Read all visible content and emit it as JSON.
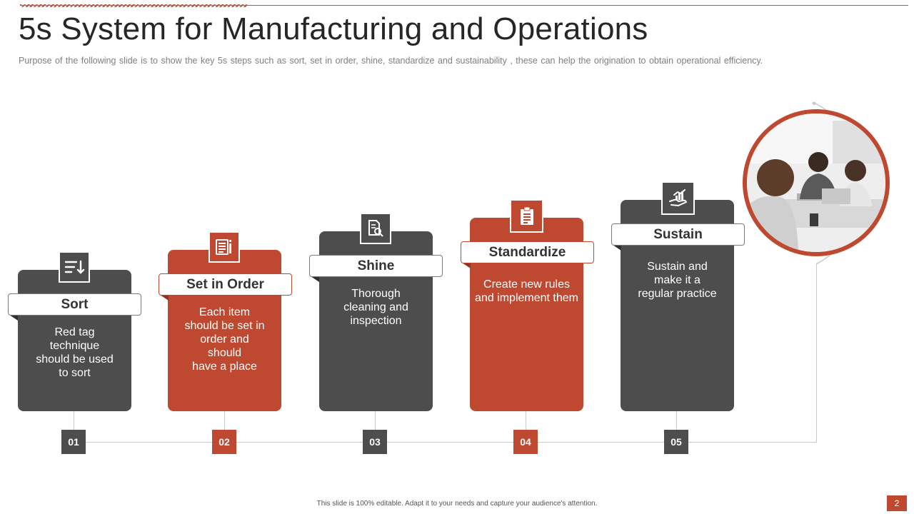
{
  "slide": {
    "title": "5s System for Manufacturing and Operations",
    "subtitle": "Purpose of the following slide is to show the key 5s steps such as sort, set in order, shine, standardize and sustainability , these can help the origination to obtain operational efficiency.",
    "footer": "This slide is 100% editable. Adapt it to your needs and capture your audience's attention.",
    "page_number": "2"
  },
  "colors": {
    "dark": "#4d4d4d",
    "red": "#bf4930",
    "line": "#c9c9c9"
  },
  "steps": [
    {
      "label": "Sort",
      "text": "Red tag\ntechnique\nshould be used\nto sort",
      "number": "01",
      "icon": "sort-icon",
      "color": "dark"
    },
    {
      "label": "Set in Order",
      "text": "Each item\nshould be set in\norder and\nshould\nhave a place",
      "number": "02",
      "icon": "list-icon",
      "color": "red"
    },
    {
      "label": "Shine",
      "text": "Thorough\ncleaning and\ninspection",
      "number": "03",
      "icon": "document-search-icon",
      "color": "dark"
    },
    {
      "label": "Standardize",
      "text": "Create new rules\nand implement them",
      "number": "04",
      "icon": "clipboard-icon",
      "color": "red"
    },
    {
      "label": "Sustain",
      "text": "Sustain and\nmake it a\nregular practice",
      "number": "05",
      "icon": "growth-hand-icon",
      "color": "dark"
    }
  ],
  "photo": {
    "icon": "team-meeting-photo"
  }
}
